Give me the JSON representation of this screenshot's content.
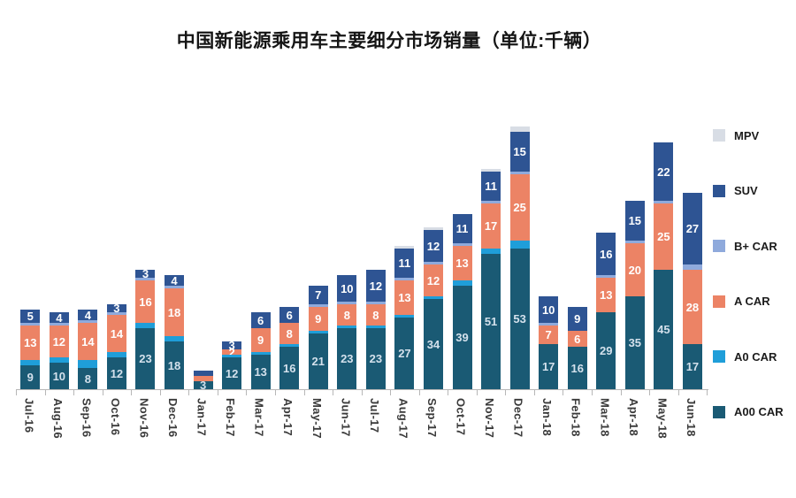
{
  "title": "中国新能源乘用车主要细分市场销量（单位:千辆）",
  "chart_data": {
    "type": "bar",
    "stacked": true,
    "title": "中国新能源乘用车主要细分市场销量（单位:千辆）",
    "unit_label": "千辆",
    "legend_position": "right",
    "legend_order_top_to_bottom": [
      "MPV",
      "SUV",
      "B+ CAR",
      "A CAR",
      "A0 CAR",
      "A00 CAR"
    ],
    "grid": false,
    "categories": [
      "Jul-16",
      "Aug-16",
      "Sep-16",
      "Oct-16",
      "Nov-16",
      "Dec-16",
      "Jan-17",
      "Feb-17",
      "Mar-17",
      "Apr-17",
      "May-17",
      "Jun-17",
      "Jul-17",
      "Aug-17",
      "Sep-17",
      "Oct-17",
      "Nov-17",
      "Dec-17",
      "Jan-18",
      "Feb-18",
      "Mar-18",
      "Apr-18",
      "May-18",
      "Jun-18"
    ],
    "series": [
      {
        "name": "A00 CAR",
        "color": "#1a5a74",
        "label_color": "#d4e1ec",
        "values": [
          9,
          10,
          8,
          12,
          23,
          18,
          3,
          12,
          13,
          16,
          21,
          23,
          23,
          27,
          34,
          39,
          51,
          53,
          17,
          16,
          29,
          35,
          45,
          17
        ],
        "labels": [
          "9",
          "10",
          "8",
          "12",
          "23",
          "18",
          "3",
          "12",
          "13",
          "16",
          "21",
          "23",
          "23",
          "27",
          "34",
          "39",
          "51",
          "53",
          "17",
          "16",
          "29",
          "35",
          "45",
          "17"
        ]
      },
      {
        "name": "A0 CAR",
        "color": "#1f9ed9",
        "label_color": "#ffffff",
        "values": [
          2,
          2,
          3,
          2,
          2,
          2,
          0,
          1,
          1,
          1,
          1,
          1,
          1,
          1,
          1,
          2,
          2,
          3,
          0,
          0,
          0,
          0,
          0,
          0
        ],
        "labels": [
          "",
          "",
          "",
          "",
          "",
          "",
          "",
          "",
          "",
          "",
          "",
          "",
          "",
          "",
          "",
          "",
          "",
          "",
          "",
          "",
          "",
          "",
          "",
          ""
        ]
      },
      {
        "name": "A CAR",
        "color": "#ec8365",
        "label_color": "#ffffff",
        "values": [
          13,
          12,
          14,
          14,
          16,
          18,
          2,
          2,
          9,
          8,
          9,
          8,
          8,
          13,
          12,
          13,
          17,
          25,
          7,
          6,
          13,
          20,
          25,
          28
        ],
        "labels": [
          "13",
          "12",
          "14",
          "14",
          "16",
          "18",
          "",
          "2",
          "9",
          "8",
          "9",
          "8",
          "8",
          "13",
          "12",
          "13",
          "17",
          "25",
          "7",
          "6",
          "13",
          "20",
          "25",
          "28"
        ]
      },
      {
        "name": "B+ CAR",
        "color": "#8faadc",
        "label_color": "#ffffff",
        "values": [
          1,
          1,
          1,
          1,
          1,
          1,
          0,
          0,
          0,
          0,
          1,
          1,
          1,
          1,
          1,
          1,
          1,
          1,
          1,
          0,
          1,
          1,
          1,
          2
        ],
        "labels": [
          "",
          "",
          "",
          "",
          "",
          "",
          "",
          "",
          "",
          "",
          "",
          "",
          "",
          "",
          "",
          "",
          "",
          "",
          "",
          "",
          "",
          "",
          "",
          ""
        ]
      },
      {
        "name": "SUV",
        "color": "#2e5493",
        "label_color": "#ffffff",
        "values": [
          5,
          4,
          4,
          3,
          3,
          4,
          2,
          3,
          6,
          6,
          7,
          10,
          12,
          11,
          12,
          11,
          11,
          15,
          10,
          9,
          16,
          15,
          22,
          27
        ],
        "labels": [
          "5",
          "4",
          "4",
          "3",
          "3",
          "4",
          "",
          "3",
          "6",
          "6",
          "7",
          "10",
          "12",
          "11",
          "12",
          "11",
          "11",
          "15",
          "10",
          "9",
          "16",
          "15",
          "22",
          "27"
        ]
      },
      {
        "name": "MPV",
        "color": "#d8dde5",
        "label_color": "#6b6b6b",
        "values": [
          0,
          0,
          0,
          0,
          0,
          0,
          0,
          0,
          0,
          0,
          0,
          0,
          0,
          1,
          1,
          0,
          1,
          2,
          0,
          0,
          0,
          0,
          0,
          0
        ],
        "labels": [
          "",
          "",
          "",
          "",
          "",
          "",
          "",
          "",
          "",
          "",
          "",
          "",
          "",
          "",
          "",
          "",
          "",
          "",
          "",
          "",
          "",
          "",
          "",
          ""
        ]
      }
    ]
  }
}
